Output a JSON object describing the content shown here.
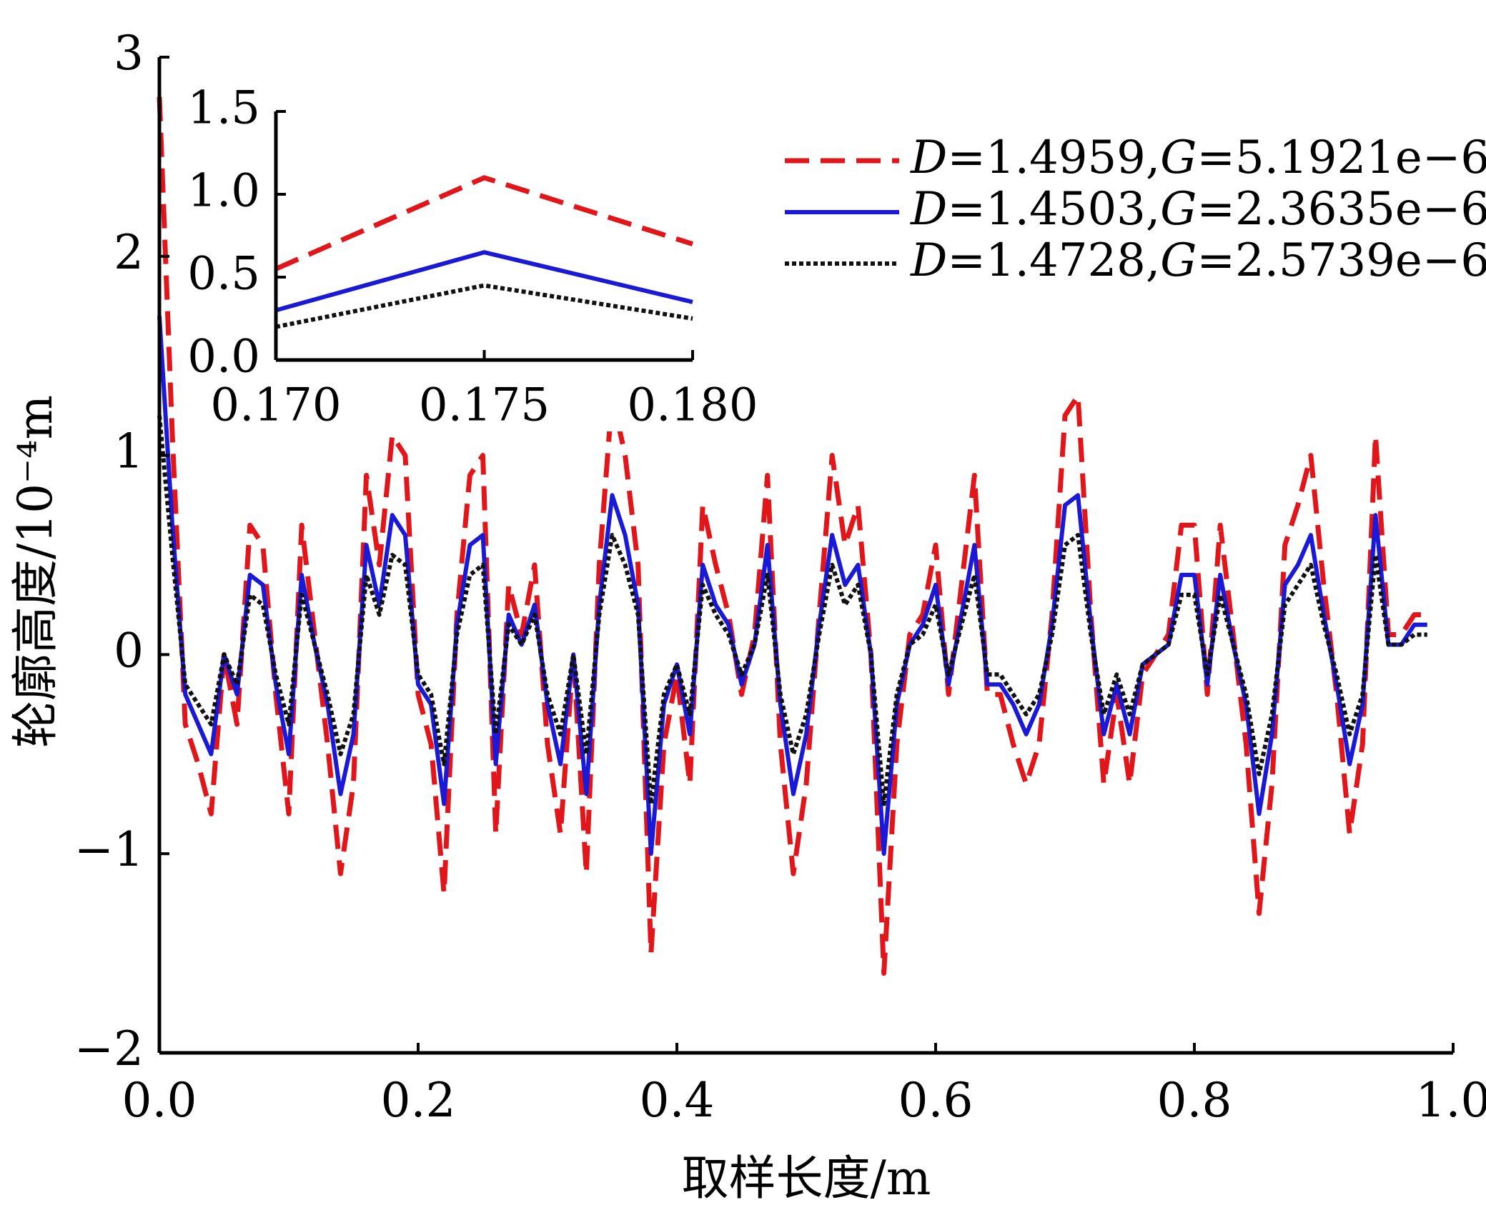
{
  "chart_data": [
    {
      "type": "line",
      "xlabel": "取样长度/m",
      "ylabel": "轮廓高度/10⁻⁴m",
      "xlim": [
        0,
        1
      ],
      "ylim": [
        -2,
        3
      ],
      "xticks": [
        {
          "value": 0,
          "label": "0.0"
        },
        {
          "value": 0.2,
          "label": "0.2"
        },
        {
          "value": 0.4,
          "label": "0.4"
        },
        {
          "value": 0.6,
          "label": "0.6"
        },
        {
          "value": 0.8,
          "label": "0.8"
        },
        {
          "value": 1,
          "label": "1.0"
        }
      ],
      "yticks": [
        {
          "value": -2,
          "label": "−2"
        },
        {
          "value": -1,
          "label": "−1"
        },
        0,
        1,
        2,
        3
      ],
      "legend": "upper right",
      "x": [
        0,
        0.01,
        0.02,
        0.03,
        0.04,
        0.05,
        0.06,
        0.07,
        0.08,
        0.09,
        0.1,
        0.11,
        0.12,
        0.13,
        0.14,
        0.15,
        0.16,
        0.17,
        0.18,
        0.19,
        0.2,
        0.21,
        0.22,
        0.23,
        0.24,
        0.25,
        0.26,
        0.27,
        0.28,
        0.29,
        0.3,
        0.31,
        0.32,
        0.33,
        0.34,
        0.35,
        0.36,
        0.37,
        0.38,
        0.39,
        0.4,
        0.41,
        0.42,
        0.43,
        0.44,
        0.45,
        0.46,
        0.47,
        0.48,
        0.49,
        0.5,
        0.51,
        0.52,
        0.53,
        0.54,
        0.55,
        0.56,
        0.57,
        0.58,
        0.59,
        0.6,
        0.61,
        0.62,
        0.63,
        0.64,
        0.65,
        0.66,
        0.67,
        0.68,
        0.69,
        0.7,
        0.71,
        0.72,
        0.73,
        0.74,
        0.75,
        0.76,
        0.77,
        0.78,
        0.79,
        0.8,
        0.81,
        0.82,
        0.83,
        0.84,
        0.85,
        0.86,
        0.87,
        0.88,
        0.89,
        0.9,
        0.91,
        0.92,
        0.93,
        0.94,
        0.95,
        0.96,
        0.97,
        0.98
      ],
      "series": [
        {
          "name": "D=1.4959,G=5.1921e−6",
          "color": "#e0161b",
          "style": "dashed",
          "values": [
            2.8,
            1.1,
            -0.35,
            -0.55,
            -0.8,
            0,
            -0.35,
            0.65,
            0.55,
            -0.2,
            -0.8,
            0.65,
            0.1,
            -0.45,
            -1.1,
            -0.65,
            0.9,
            0.45,
            1.1,
            1.0,
            -0.2,
            -0.45,
            -1.2,
            0.2,
            0.9,
            1.0,
            -0.9,
            0.35,
            0.1,
            0.45,
            -0.45,
            -0.9,
            0,
            -1.1,
            0.45,
            1.3,
            1.0,
            0.45,
            -1.5,
            -0.45,
            -0.1,
            -0.65,
            0.75,
            0.45,
            0.2,
            -0.2,
            0.1,
            0.9,
            -0.45,
            -1.1,
            -0.65,
            0.2,
            1.0,
            0.55,
            0.75,
            0,
            -1.6,
            -0.45,
            0.1,
            0.2,
            0.55,
            -0.2,
            0.35,
            0.9,
            -0.2,
            -0.2,
            -0.45,
            -0.65,
            -0.45,
            0.2,
            1.2,
            1.3,
            0.2,
            -0.65,
            -0.2,
            -0.65,
            -0.1,
            0,
            0.1,
            0.65,
            0.65,
            -0.2,
            0.65,
            0.1,
            -0.45,
            -1.3,
            -0.65,
            0.55,
            0.75,
            1.0,
            0.35,
            -0.2,
            -0.9,
            -0.45,
            1.1,
            0.1,
            0.1,
            0.2,
            0.2
          ]
        },
        {
          "name": "D=1.4503,G=2.3635e−6",
          "color": "#1a1ad6",
          "style": "solid",
          "values": [
            1.7,
            0.65,
            -0.2,
            -0.35,
            -0.5,
            0,
            -0.2,
            0.4,
            0.35,
            -0.15,
            -0.5,
            0.4,
            0.05,
            -0.25,
            -0.7,
            -0.4,
            0.55,
            0.25,
            0.7,
            0.6,
            -0.15,
            -0.25,
            -0.75,
            0.15,
            0.55,
            0.6,
            -0.55,
            0.2,
            0.05,
            0.25,
            -0.25,
            -0.55,
            0,
            -0.7,
            0.25,
            0.8,
            0.6,
            0.25,
            -1.0,
            -0.25,
            -0.05,
            -0.4,
            0.45,
            0.25,
            0.15,
            -0.15,
            0.05,
            0.55,
            -0.25,
            -0.7,
            -0.4,
            0.15,
            0.6,
            0.35,
            0.45,
            0,
            -1.0,
            -0.25,
            0.05,
            0.15,
            0.35,
            -0.15,
            0.2,
            0.55,
            -0.15,
            -0.15,
            -0.25,
            -0.4,
            -0.25,
            0.15,
            0.75,
            0.8,
            0.15,
            -0.4,
            -0.15,
            -0.4,
            -0.05,
            0,
            0.05,
            0.4,
            0.4,
            -0.15,
            0.4,
            0.05,
            -0.25,
            -0.8,
            -0.4,
            0.35,
            0.45,
            0.6,
            0.2,
            -0.15,
            -0.55,
            -0.25,
            0.7,
            0.05,
            0.05,
            0.15,
            0.15
          ]
        },
        {
          "name": "D=1.4728,G=2.5739e−6",
          "color": "#111111",
          "style": "dotted",
          "values": [
            1.2,
            0.5,
            -0.15,
            -0.25,
            -0.35,
            0,
            -0.15,
            0.3,
            0.25,
            -0.1,
            -0.35,
            0.3,
            0.05,
            -0.2,
            -0.5,
            -0.3,
            0.4,
            0.2,
            0.5,
            0.45,
            -0.1,
            -0.2,
            -0.55,
            0.1,
            0.4,
            0.45,
            -0.4,
            0.15,
            0.05,
            0.2,
            -0.2,
            -0.4,
            0,
            -0.5,
            0.2,
            0.6,
            0.45,
            0.2,
            -0.75,
            -0.2,
            -0.05,
            -0.3,
            0.35,
            0.2,
            0.1,
            -0.1,
            0.05,
            0.4,
            -0.2,
            -0.5,
            -0.3,
            0.1,
            0.45,
            0.25,
            0.35,
            0,
            -0.75,
            -0.2,
            0.05,
            0.1,
            0.25,
            -0.1,
            0.15,
            0.4,
            -0.1,
            -0.1,
            -0.2,
            -0.3,
            -0.2,
            0.1,
            0.55,
            0.6,
            0.1,
            -0.3,
            -0.1,
            -0.3,
            -0.05,
            0,
            0.05,
            0.3,
            0.3,
            -0.1,
            0.3,
            0.05,
            -0.2,
            -0.6,
            -0.3,
            0.25,
            0.35,
            0.45,
            0.15,
            -0.1,
            -0.4,
            -0.2,
            0.5,
            0.05,
            0.05,
            0.1,
            0.1
          ]
        }
      ]
    },
    {
      "type": "line",
      "xlim": [
        0.17,
        0.18
      ],
      "ylim": [
        0,
        1.5
      ],
      "xticks": [
        {
          "value": 0.17,
          "label": "0.170"
        },
        {
          "value": 0.175,
          "label": "0.175"
        },
        {
          "value": 0.18,
          "label": "0.180"
        }
      ],
      "yticks": [
        {
          "value": 0,
          "label": "0.0"
        },
        0.5,
        {
          "value": 1,
          "label": "1.0"
        },
        1.5
      ],
      "x": [
        0.17,
        0.175,
        0.18
      ],
      "series": [
        {
          "color": "#e0161b",
          "style": "dashed",
          "values": [
            0.55,
            1.1,
            0.7
          ]
        },
        {
          "color": "#1a1ad6",
          "style": "solid",
          "values": [
            0.3,
            0.65,
            0.35
          ]
        },
        {
          "color": "#111111",
          "style": "dotted",
          "values": [
            0.2,
            0.45,
            0.25
          ]
        }
      ]
    }
  ]
}
